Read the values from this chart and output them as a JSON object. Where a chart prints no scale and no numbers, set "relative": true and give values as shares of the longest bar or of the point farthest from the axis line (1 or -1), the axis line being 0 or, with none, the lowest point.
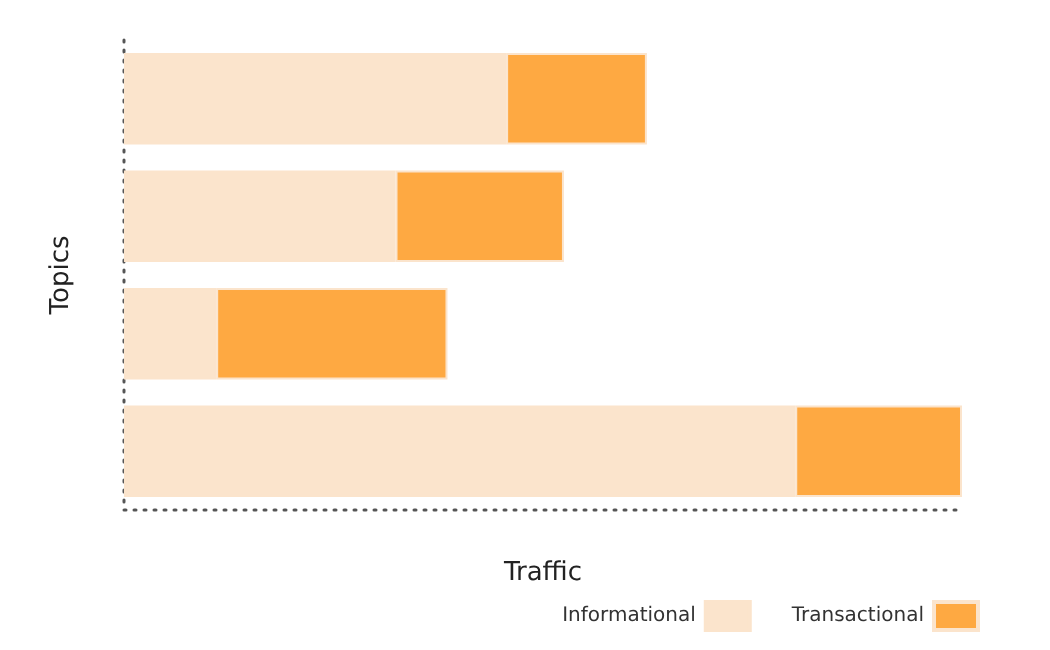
{
  "chart_data": {
    "type": "bar",
    "orientation": "horizontal",
    "stacked": true,
    "relative": true,
    "xlabel": "Traffic",
    "ylabel": "Topics",
    "categories": [
      null,
      null,
      null,
      null
    ],
    "series": [
      {
        "name": "Informational",
        "color": "#fbe4cc",
        "values": [
          0.456,
          0.324,
          0.11,
          0.801
        ]
      },
      {
        "name": "Transactional",
        "color": "#fea942",
        "values": [
          0.168,
          0.201,
          0.276,
          0.199
        ]
      }
    ],
    "legend": "bottom right",
    "grid": false
  }
}
